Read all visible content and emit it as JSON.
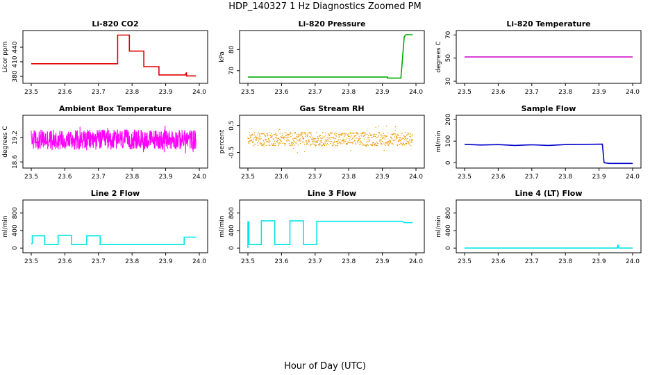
{
  "figure": {
    "title": "HDP_140327  1 Hz Diagnostics Zoomed PM",
    "xlabel": "Hour of Day (UTC)"
  },
  "chart_data": [
    {
      "type": "line",
      "title": "Li-820 CO2",
      "ylabel": "Licor ppm",
      "color": "#dd0000",
      "xlim": [
        23.5,
        24.0
      ],
      "ylim": [
        370,
        470
      ],
      "yticks": [
        380,
        410,
        440
      ],
      "x": [
        23.5,
        23.757,
        23.757,
        23.792,
        23.792,
        23.835,
        23.835,
        23.88,
        23.88,
        23.958,
        23.962,
        23.962,
        23.99
      ],
      "y": [
        406,
        406,
        465,
        465,
        432,
        432,
        400,
        400,
        383,
        383,
        388,
        381,
        381
      ]
    },
    {
      "type": "line",
      "title": "Li-820 Pressure",
      "ylabel": "kPa",
      "color": "#00aa00",
      "xlim": [
        23.5,
        24.0
      ],
      "ylim": [
        65,
        88
      ],
      "yticks": [
        70,
        80
      ],
      "x": [
        23.5,
        23.915,
        23.915,
        23.955,
        23.958,
        23.965,
        23.97,
        23.99
      ],
      "y": [
        67,
        67,
        66.5,
        66.5,
        72,
        86,
        87,
        87
      ]
    },
    {
      "type": "line",
      "title": "Li-820 Temperature",
      "ylabel": "degrees C",
      "color": "#cc00cc",
      "xlim": [
        23.5,
        24.0
      ],
      "ylim": [
        30,
        72
      ],
      "yticks": [
        30,
        50,
        70
      ],
      "x": [
        23.5,
        24.0
      ],
      "y": [
        51,
        51
      ]
    },
    {
      "type": "line",
      "title": "Ambient Box Temperature",
      "ylabel": "degrees C",
      "color": "#ff00ff",
      "xlim": [
        23.5,
        24.0
      ],
      "ylim": [
        18.5,
        19.7
      ],
      "yticks": [
        18.6,
        19.2
      ],
      "noise": {
        "center": 19.15,
        "amplitude": 0.25
      },
      "x": [
        23.5,
        23.99
      ],
      "y": [
        19.15,
        19.15
      ]
    },
    {
      "type": "scatter",
      "title": "Gas Stream RH",
      "ylabel": "percent",
      "color": "#ee9900",
      "xlim": [
        23.5,
        24.0
      ],
      "ylim": [
        -1.0,
        0.8
      ],
      "yticks": [
        -0.5,
        0.5
      ],
      "noise": {
        "center": 0.0,
        "amplitude": 0.25
      },
      "x": [
        23.5,
        23.99
      ],
      "y": [
        0.0,
        0.0
      ]
    },
    {
      "type": "line",
      "title": "Sample Flow",
      "ylabel": "ml/min",
      "color": "#0000cc",
      "xlim": [
        23.5,
        24.0
      ],
      "ylim": [
        -15,
        210
      ],
      "yticks": [
        0,
        100,
        200
      ],
      "x": [
        23.5,
        23.55,
        23.6,
        23.65,
        23.7,
        23.75,
        23.8,
        23.85,
        23.91,
        23.915,
        23.93,
        24.0
      ],
      "y": [
        85,
        82,
        84,
        80,
        83,
        80,
        84,
        85,
        86,
        0,
        -3,
        -3
      ]
    },
    {
      "type": "line",
      "title": "Line 2 Flow",
      "ylabel": "ml/min",
      "color": "#00e5e5",
      "xlim": [
        23.5,
        24.0
      ],
      "ylim": [
        -60,
        1050
      ],
      "yticks": [
        0,
        400,
        800
      ],
      "x": [
        23.5,
        23.503,
        23.503,
        23.54,
        23.54,
        23.58,
        23.58,
        23.62,
        23.62,
        23.665,
        23.665,
        23.705,
        23.705,
        23.955,
        23.955,
        23.99
      ],
      "y": [
        100,
        100,
        280,
        280,
        80,
        80,
        290,
        290,
        80,
        80,
        280,
        280,
        80,
        80,
        250,
        250
      ]
    },
    {
      "type": "line",
      "title": "Line 3 Flow",
      "ylabel": "ml/min",
      "color": "#00e5e5",
      "xlim": [
        23.5,
        24.0
      ],
      "ylim": [
        -60,
        1050
      ],
      "yticks": [
        0,
        400,
        800
      ],
      "x": [
        23.5,
        23.5,
        23.503,
        23.503,
        23.54,
        23.54,
        23.58,
        23.58,
        23.625,
        23.625,
        23.665,
        23.665,
        23.705,
        23.705,
        23.96,
        23.965,
        23.99
      ],
      "y": [
        0,
        600,
        600,
        80,
        80,
        620,
        620,
        80,
        80,
        620,
        620,
        80,
        80,
        610,
        610,
        580,
        580
      ]
    },
    {
      "type": "line",
      "title": "Line 4 (LT) Flow",
      "ylabel": "ml/min",
      "color": "#00e5e5",
      "xlim": [
        23.5,
        24.0
      ],
      "ylim": [
        -60,
        1050
      ],
      "yticks": [
        0,
        400,
        800
      ],
      "x": [
        23.5,
        23.955,
        23.956,
        23.958,
        23.96,
        23.99,
        24.0
      ],
      "y": [
        0,
        0,
        80,
        10,
        0,
        0,
        0
      ]
    }
  ],
  "xticks": [
    "23.5",
    "23.6",
    "23.7",
    "23.8",
    "23.9",
    "24.0"
  ]
}
